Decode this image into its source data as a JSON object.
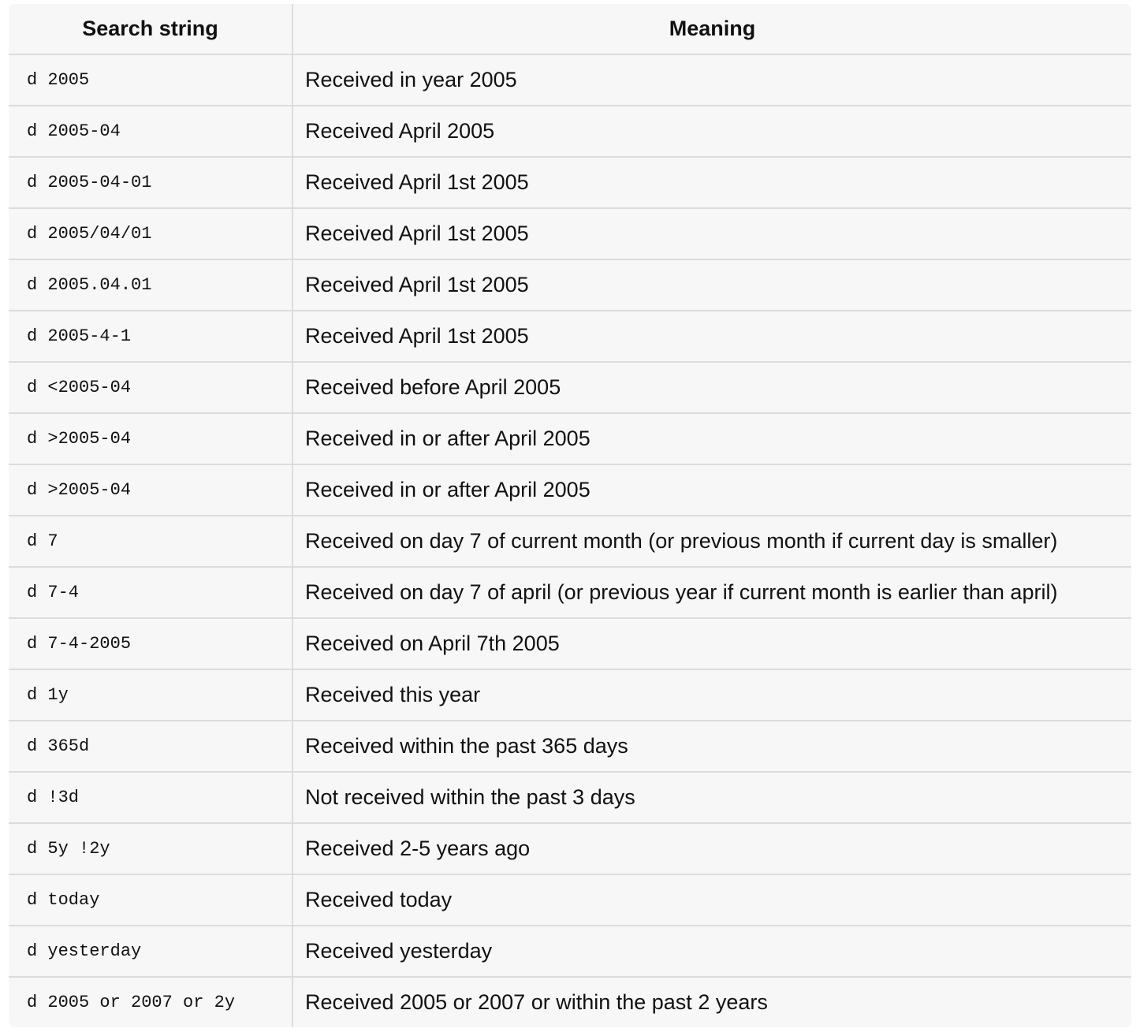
{
  "table": {
    "headers": [
      "Search string",
      "Meaning"
    ],
    "rows": [
      [
        "d 2005",
        "Received in year 2005"
      ],
      [
        "d 2005-04",
        "Received April 2005"
      ],
      [
        "d 2005-04-01",
        "Received April 1st 2005"
      ],
      [
        "d 2005/04/01",
        "Received April 1st 2005"
      ],
      [
        "d 2005.04.01",
        "Received April 1st 2005"
      ],
      [
        "d 2005-4-1",
        "Received April 1st 2005"
      ],
      [
        "d <2005-04",
        "Received before April 2005"
      ],
      [
        "d >2005-04",
        "Received in or after April 2005"
      ],
      [
        "d >2005-04",
        "Received in or after April 2005"
      ],
      [
        "d 7",
        "Received on day 7 of current month (or previous month if current day is smaller)"
      ],
      [
        "d 7-4",
        "Received on day 7 of april (or previous year if current month is earlier than april)"
      ],
      [
        "d 7-4-2005",
        "Received on April 7th 2005"
      ],
      [
        "d 1y",
        "Received this year"
      ],
      [
        "d 365d",
        "Received within the past 365 days"
      ],
      [
        "d !3d",
        "Not received within the past 3 days"
      ],
      [
        "d 5y !2y",
        "Received 2-5 years ago"
      ],
      [
        "d today",
        "Received today"
      ],
      [
        "d yesterday",
        "Received yesterday"
      ],
      [
        "d 2005 or 2007 or 2y",
        "Received 2005 or 2007 or within the past 2 years"
      ]
    ]
  }
}
